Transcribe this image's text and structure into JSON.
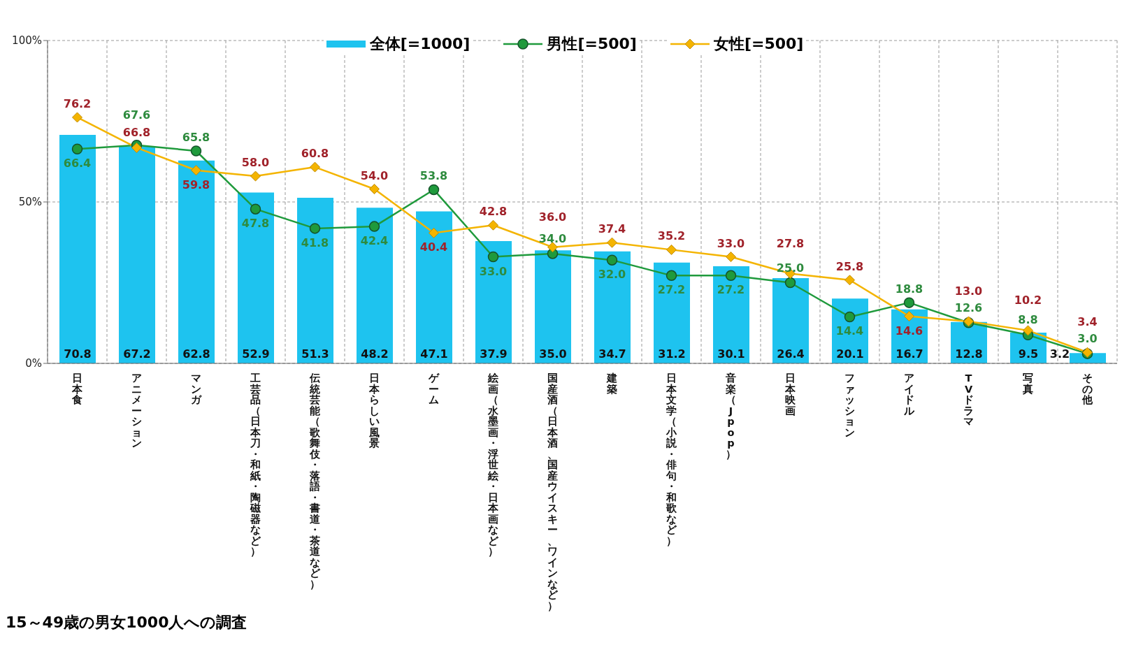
{
  "chart_data": {
    "type": "bar",
    "categories": [
      "日本食",
      "アニメーション",
      "マンガ",
      "工芸品（日本刀・和紙・陶磁器など）",
      "伝統芸能（歌舞伎・落語・書道・茶道など）",
      "日本らしい風景",
      "ゲーム",
      "絵画（水墨画・浮世絵・日本画など）",
      "国産酒（日本酒、国産ウイスキー、ワインなど）",
      "建築",
      "日本文学（小説・俳句・和歌など）",
      "音楽（Jpop）",
      "日本映画",
      "ファッション",
      "アイドル",
      "TVドラマ",
      "写真",
      "その他"
    ],
    "series": [
      {
        "name": "全体[=1000]",
        "color": "#1ec3ef",
        "values": [
          70.8,
          67.2,
          62.8,
          52.9,
          51.3,
          48.2,
          47.1,
          37.9,
          35.0,
          34.7,
          31.2,
          30.1,
          26.4,
          20.1,
          16.7,
          12.8,
          9.5,
          3.2
        ],
        "value_labels": [
          "70.8",
          "67.2",
          "62.8",
          "52.9",
          "51.3",
          "48.2",
          "47.1",
          "37.9",
          "35.0",
          "34.7",
          "31.2",
          "30.1",
          "26.4",
          "20.1",
          "16.7",
          "12.8",
          "9.5",
          "3.2"
        ]
      },
      {
        "name": "男性[=500]",
        "type": "line",
        "color": "#1f9a3c",
        "marker": "circle",
        "values": [
          66.4,
          67.6,
          65.8,
          47.8,
          41.8,
          42.4,
          53.8,
          33.0,
          34.0,
          32.0,
          27.2,
          27.2,
          25.0,
          14.4,
          18.8,
          12.6,
          8.8,
          3.0
        ],
        "value_labels": [
          "66.4",
          "67.6",
          "65.8",
          "47.8",
          "41.8",
          "42.4",
          "53.8",
          "33.0",
          "34.0",
          "32.0",
          "27.2",
          "27.2",
          "25.0",
          "14.4",
          "18.8",
          "12.6",
          "8.8",
          "3.0"
        ]
      },
      {
        "name": "女性[=500]",
        "type": "line",
        "color": "#f4b400",
        "marker": "diamond",
        "values": [
          76.2,
          66.8,
          59.8,
          58.0,
          60.8,
          54.0,
          40.4,
          42.8,
          36.0,
          37.4,
          35.2,
          33.0,
          27.8,
          25.8,
          14.6,
          13.0,
          10.2,
          3.4
        ],
        "value_labels": [
          "76.2",
          "66.8",
          "59.8",
          "58.0",
          "60.8",
          "54.0",
          "40.4",
          "42.8",
          "36.0",
          "37.4",
          "35.2",
          "33.0",
          "27.8",
          "25.8",
          "14.6",
          "13.0",
          "10.2",
          "3.4"
        ]
      }
    ],
    "ylim": [
      0,
      100
    ],
    "yticks": [
      {
        "value": 0,
        "label": "0%"
      },
      {
        "value": 50,
        "label": "50%"
      },
      {
        "value": 100,
        "label": "100%"
      }
    ],
    "grid": true,
    "legend": "top",
    "annotations": [
      "15～49歳の男女1000人への調査"
    ]
  }
}
